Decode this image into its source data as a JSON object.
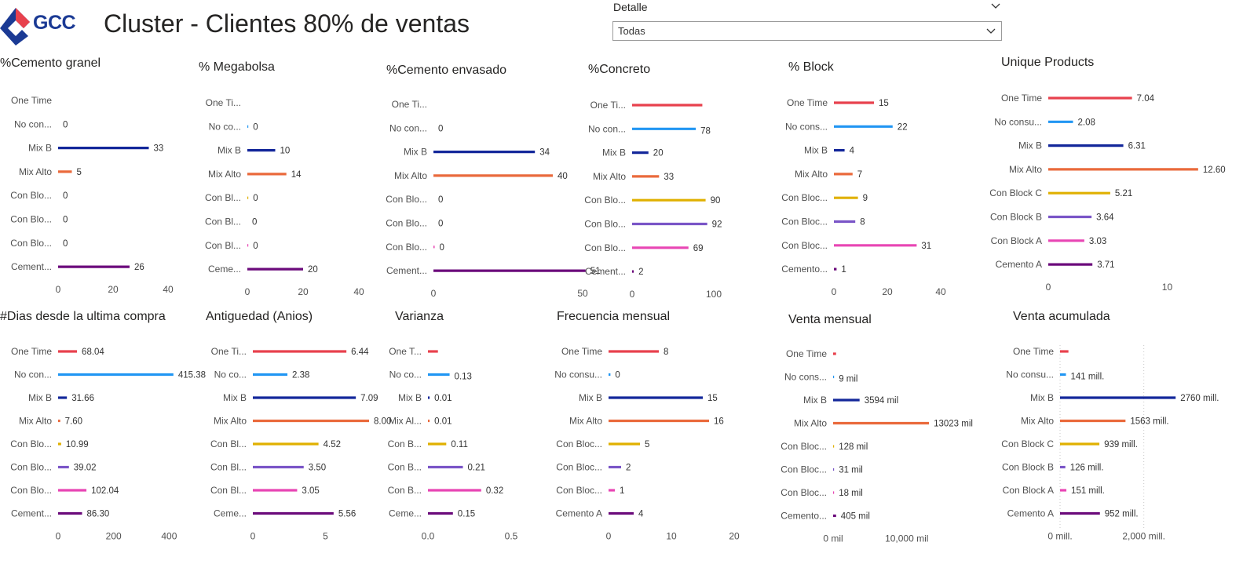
{
  "header": {
    "logo_text": "GCC",
    "title": "Cluster - Clientes 80% de ventas",
    "slicer_label": "Detalle",
    "slicer_value": "Todas"
  },
  "colors": {
    "One Time": "#e8414d",
    "No consumidor": "#2196f3",
    "Mix B": "#13279a",
    "Mix Alto": "#ea6a3c",
    "Con Block C": "#e0b000",
    "Con Block B": "#7a55c7",
    "Con Block A": "#e846b4",
    "Cemento A": "#6b0a7b"
  },
  "charts": [
    {
      "id": "cemento-granel",
      "title": "%Cemento granel",
      "xmax": 40,
      "ticks": [
        0,
        20,
        40
      ],
      "tick_labels": [
        "0",
        "20",
        "40"
      ],
      "cats": [
        "One Time",
        "No con...",
        "Mix B",
        "Mix Alto",
        "Con Blo...",
        "Con Blo...",
        "Con Blo...",
        "Cement..."
      ],
      "values": [
        0,
        0,
        33,
        5,
        0,
        0,
        0,
        26
      ],
      "labels": [
        "",
        "0",
        "33",
        "5",
        "0",
        "0",
        "0",
        "26"
      ]
    },
    {
      "id": "megabolsa",
      "title": "% Megabolsa",
      "xmax": 40,
      "ticks": [
        0,
        20,
        40
      ],
      "tick_labels": [
        "0",
        "20",
        "40"
      ],
      "cats": [
        "One Ti...",
        "No co...",
        "Mix B",
        "Mix Alto",
        "Con Bl...",
        "Con Bl...",
        "Con Bl...",
        "Ceme..."
      ],
      "values": [
        0,
        0.2,
        10,
        14,
        0.2,
        0,
        0.2,
        20
      ],
      "labels": [
        "",
        "0",
        "10",
        "14",
        "0",
        "0",
        "0",
        "20"
      ]
    },
    {
      "id": "cemento-envasado",
      "title": "%Cemento envasado",
      "xmax": 50,
      "ticks": [
        0,
        50
      ],
      "tick_labels": [
        "0",
        "50"
      ],
      "cats": [
        "One Ti...",
        "No con...",
        "Mix B",
        "Mix Alto",
        "Con Blo...",
        "Con Blo...",
        "Con Blo...",
        "Cement..."
      ],
      "values": [
        0,
        0,
        34,
        40,
        0,
        0,
        0.4,
        51
      ],
      "labels": [
        "",
        "0",
        "34",
        "40",
        "0",
        "0",
        "0",
        "51"
      ]
    },
    {
      "id": "concreto",
      "title": "%Concreto",
      "xmax": 100,
      "ticks": [
        0,
        100
      ],
      "tick_labels": [
        "0",
        "100"
      ],
      "cats": [
        "One Ti...",
        "No con...",
        "Mix B",
        "Mix Alto",
        "Con Blo...",
        "Con Blo...",
        "Con Blo...",
        "Cement..."
      ],
      "values": [
        86,
        78,
        20,
        33,
        90,
        92,
        69,
        2
      ],
      "labels": [
        "",
        "78",
        "20",
        "33",
        "90",
        "92",
        "69",
        "2"
      ]
    },
    {
      "id": "block",
      "title": "% Block",
      "xmax": 40,
      "ticks": [
        0,
        20,
        40
      ],
      "tick_labels": [
        "0",
        "20",
        "40"
      ],
      "cats": [
        "One Time",
        "No cons...",
        "Mix B",
        "Mix Alto",
        "Con Bloc...",
        "Con Bloc...",
        "Con Bloc...",
        "Cemento..."
      ],
      "values": [
        15,
        22,
        4,
        7,
        9,
        8,
        31,
        1
      ],
      "labels": [
        "15",
        "22",
        "4",
        "7",
        "9",
        "8",
        "31",
        "1"
      ]
    },
    {
      "id": "unique-products",
      "title": "Unique Products",
      "xmax": 13.6,
      "ticks": [
        0,
        10
      ],
      "tick_labels": [
        "0",
        "10"
      ],
      "cats": [
        "One Time",
        "No consu...",
        "Mix B",
        "Mix Alto",
        "Con Block C",
        "Con Block B",
        "Con Block A",
        "Cemento A"
      ],
      "values": [
        7.04,
        2.08,
        6.31,
        12.6,
        5.21,
        3.64,
        3.03,
        3.71
      ],
      "labels": [
        "7.04",
        "2.08",
        "6.31",
        "12.60",
        "5.21",
        "3.64",
        "3.03",
        "3.71"
      ]
    },
    {
      "id": "dias-ultima-compra",
      "title": "#Dias desde la ultima compra",
      "xmax": 430,
      "ticks": [
        0,
        200,
        400
      ],
      "tick_labels": [
        "0",
        "200",
        "400"
      ],
      "cats": [
        "One Time",
        "No con...",
        "Mix B",
        "Mix Alto",
        "Con Blo...",
        "Con Blo...",
        "Con Blo...",
        "Cement..."
      ],
      "values": [
        68.04,
        415.38,
        31.66,
        7.6,
        10.99,
        39.02,
        102.04,
        86.3
      ],
      "labels": [
        "68.04",
        "415.38",
        "31.66",
        "7.60",
        "10.99",
        "39.02",
        "102.04",
        "86.30"
      ]
    },
    {
      "id": "antiguedad",
      "title": "Antiguedad (Anios)",
      "xmax": 8,
      "ticks": [
        0,
        5
      ],
      "tick_labels": [
        "0",
        "5"
      ],
      "cats": [
        "One Ti...",
        "No co...",
        "Mix B",
        "Mix Alto",
        "Con Bl...",
        "Con Bl...",
        "Con Bl...",
        "Ceme..."
      ],
      "values": [
        6.44,
        2.38,
        7.09,
        8.0,
        4.52,
        3.5,
        3.05,
        5.56
      ],
      "labels": [
        "6.44",
        "2.38",
        "7.09",
        "8.00",
        "4.52",
        "3.50",
        "3.05",
        "5.56"
      ]
    },
    {
      "id": "varianza",
      "title": "Varianza",
      "xmax": 0.5,
      "ticks": [
        0,
        0.5
      ],
      "tick_labels": [
        "0.0",
        "0.5"
      ],
      "cats": [
        "One T...",
        "No co...",
        "Mix B",
        "Mix Al...",
        "Con B...",
        "Con B...",
        "Con B...",
        "Ceme..."
      ],
      "values": [
        0.06,
        0.13,
        0.01,
        0.01,
        0.11,
        0.21,
        0.32,
        0.15
      ],
      "labels": [
        "",
        "0.13",
        "0.01",
        "0.01",
        "0.11",
        "0.21",
        "0.32",
        "0.15"
      ]
    },
    {
      "id": "frecuencia-mensual",
      "title": "Frecuencia mensual",
      "xmax": 20,
      "ticks": [
        0,
        10,
        20
      ],
      "tick_labels": [
        "0",
        "10",
        "20"
      ],
      "cats": [
        "One Time",
        "No consu...",
        "Mix B",
        "Mix Alto",
        "Con Bloc...",
        "Con Bloc...",
        "Con Bloc...",
        "Cemento A"
      ],
      "values": [
        8,
        0.3,
        15,
        16,
        5,
        2,
        1,
        4
      ],
      "labels": [
        "8",
        "0",
        "15",
        "16",
        "5",
        "2",
        "1",
        "4"
      ]
    },
    {
      "id": "venta-mensual",
      "title": "Venta mensual",
      "xmax": 16000,
      "ticks": [
        0,
        10000
      ],
      "tick_labels": [
        "0 mil",
        "10,000 mil"
      ],
      "cats": [
        "One Time",
        "No cons...",
        "Mix B",
        "Mix Alto",
        "Con Bloc...",
        "Con Bloc...",
        "Con Bloc...",
        "Cemento..."
      ],
      "values": [
        400,
        9,
        3594,
        13023,
        128,
        31,
        18,
        405
      ],
      "labels": [
        "",
        "9 mil",
        "3594 mil",
        "13023 mil",
        "128 mil",
        "31 mil",
        "18 mil",
        "405 mil"
      ]
    },
    {
      "id": "venta-acumulada",
      "title": "Venta acumulada",
      "xmax": 3000,
      "ticks": [
        0,
        2000
      ],
      "tick_labels": [
        "0 mill.",
        "2,000 mill."
      ],
      "cats": [
        "One Time",
        "No consu...",
        "Mix B",
        "Mix Alto",
        "Con Block C",
        "Con Block B",
        "Con Block A",
        "Cemento A"
      ],
      "values": [
        200,
        141,
        2760,
        1563,
        939,
        126,
        151,
        952
      ],
      "labels": [
        "",
        "141 mill.",
        "2760 mill.",
        "1563 mill.",
        "939 mill.",
        "126 mill.",
        "151 mill.",
        "952 mill."
      ]
    }
  ]
}
